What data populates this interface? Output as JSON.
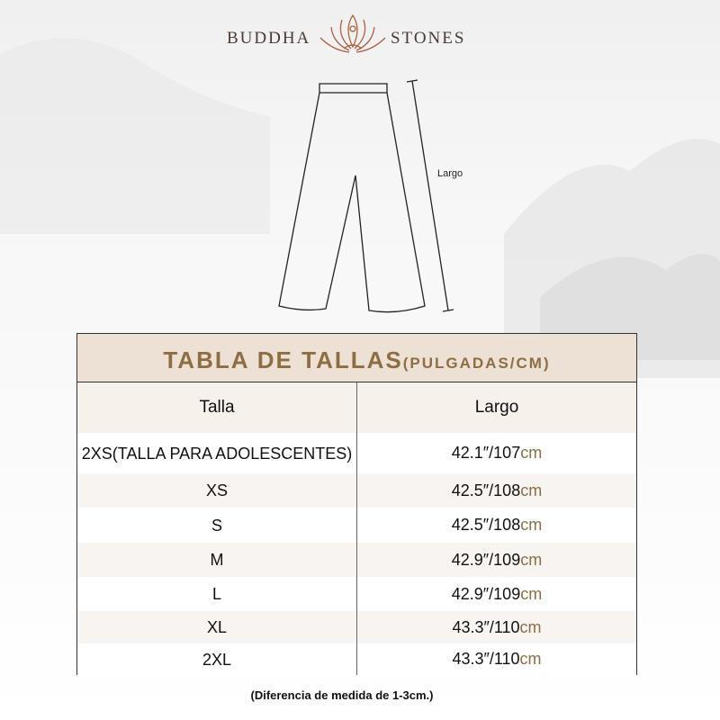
{
  "brand": {
    "left": "BUDDHA",
    "right": "STONES"
  },
  "diagram": {
    "measure_label": "Largo"
  },
  "table": {
    "title": "TABLA DE TALLAS",
    "title_sub": "(PULGADAS/CM)",
    "headers": [
      "Talla",
      "Largo"
    ],
    "rows": [
      {
        "size": "2XS",
        "size_note": "(TALLA PARA ADOLESCENTES)",
        "inch": "42.1″/107",
        "unit": "cm"
      },
      {
        "size": "XS",
        "inch": "42.5″/108",
        "unit": "cm"
      },
      {
        "size": "S",
        "inch": "42.5″/108",
        "unit": "cm"
      },
      {
        "size": "M",
        "inch": "42.9″/109",
        "unit": "cm"
      },
      {
        "size": "L",
        "inch": "42.9″/109",
        "unit": "cm"
      },
      {
        "size": "XL",
        "inch": "43.3″/110",
        "unit": "cm"
      },
      {
        "size": "2XL",
        "inch": "43.3″/110",
        "unit": "cm"
      }
    ]
  },
  "note": "(Diferencia de medida de 1-3cm.)",
  "colors": {
    "accent": "#8d6e42",
    "title_bg": "#ede0d5",
    "logo": "#b0603e"
  }
}
